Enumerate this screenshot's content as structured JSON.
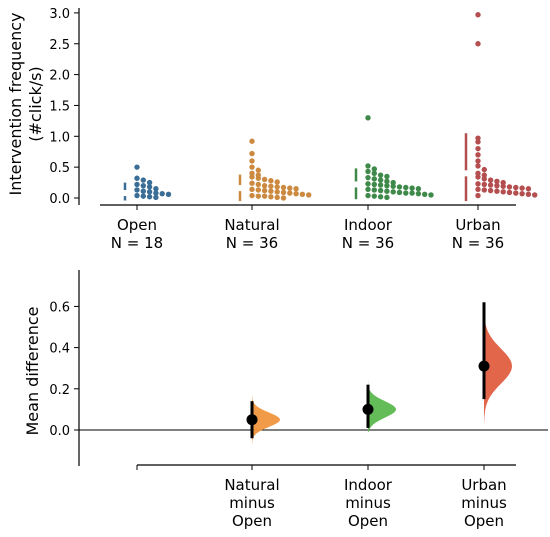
{
  "chart_data": [
    {
      "type": "scatter",
      "ylabel_lines": [
        "Intervention frequency",
        "(#click/s)"
      ],
      "ylim": [
        0,
        3
      ],
      "yticks": [
        "0.0",
        "0.5",
        "1.0",
        "1.5",
        "2.0",
        "2.5",
        "3.0"
      ],
      "ytick_values": [
        0,
        0.5,
        1.0,
        1.5,
        2.0,
        2.5,
        3.0
      ],
      "categories": [
        {
          "label": "Open",
          "n_label": "N = 18",
          "color": "#3a6e96",
          "errorbar": {
            "center": 0.08,
            "low": -0.04,
            "high": 0.25
          },
          "values": [
            0.5,
            0.32,
            0.29,
            0.25,
            0.22,
            0.2,
            0.18,
            0.15,
            0.13,
            0.11,
            0.1,
            0.08,
            0.07,
            0.06,
            0.04,
            0.03,
            0.02,
            0.01
          ]
        },
        {
          "label": "Natural",
          "n_label": "N = 36",
          "color": "#cc8a40",
          "errorbar": {
            "center": 0.16,
            "low": -0.05,
            "high": 0.38
          },
          "values": [
            0.92,
            0.72,
            0.6,
            0.5,
            0.45,
            0.4,
            0.37,
            0.34,
            0.32,
            0.3,
            0.28,
            0.26,
            0.24,
            0.22,
            0.2,
            0.19,
            0.18,
            0.17,
            0.16,
            0.15,
            0.14,
            0.13,
            0.12,
            0.11,
            0.1,
            0.09,
            0.08,
            0.07,
            0.06,
            0.05,
            0.04,
            0.03,
            0.03,
            0.02,
            0.01,
            0.0
          ]
        },
        {
          "label": "Indoor",
          "n_label": "N = 36",
          "color": "#3f8a4a",
          "errorbar": {
            "center": 0.22,
            "low": -0.02,
            "high": 0.48
          },
          "values": [
            1.3,
            0.52,
            0.47,
            0.43,
            0.4,
            0.37,
            0.35,
            0.33,
            0.31,
            0.29,
            0.27,
            0.25,
            0.23,
            0.22,
            0.21,
            0.2,
            0.19,
            0.18,
            0.17,
            0.16,
            0.15,
            0.14,
            0.13,
            0.12,
            0.11,
            0.1,
            0.09,
            0.08,
            0.08,
            0.07,
            0.06,
            0.05,
            0.04,
            0.03,
            0.02,
            0.01
          ]
        },
        {
          "label": "Urban",
          "n_label": "N = 36",
          "color": "#b54f4f",
          "errorbar": {
            "center": 0.4,
            "low": -0.05,
            "high": 1.05
          },
          "values": [
            2.97,
            2.5,
            0.97,
            0.91,
            0.8,
            0.7,
            0.6,
            0.52,
            0.46,
            0.4,
            0.37,
            0.34,
            0.31,
            0.29,
            0.27,
            0.25,
            0.23,
            0.22,
            0.21,
            0.2,
            0.19,
            0.18,
            0.17,
            0.16,
            0.15,
            0.14,
            0.13,
            0.12,
            0.11,
            0.1,
            0.09,
            0.08,
            0.07,
            0.06,
            0.05,
            0.04
          ]
        }
      ]
    },
    {
      "type": "area",
      "ylabel": "Mean difference",
      "ylim": [
        -0.17,
        0.78
      ],
      "yticks": [
        "0.0",
        "0.2",
        "0.4",
        "0.6"
      ],
      "ytick_values": [
        0,
        0.2,
        0.4,
        0.6
      ],
      "contrasts": [
        {
          "label_lines": [
            "Natural",
            "minus",
            "Open"
          ],
          "color": "#f0953e",
          "mean": 0.05,
          "ci": [
            -0.04,
            0.14
          ],
          "dist_sd": 0.035,
          "dist_range": [
            -0.08,
            0.19
          ]
        },
        {
          "label_lines": [
            "Indoor",
            "minus",
            "Open"
          ],
          "color": "#5cb84f",
          "mean": 0.1,
          "ci": [
            0.01,
            0.22
          ],
          "dist_sd": 0.04,
          "dist_range": [
            -0.01,
            0.26
          ]
        },
        {
          "label_lines": [
            "Urban",
            "minus",
            "Open"
          ],
          "color": "#e05e40",
          "mean": 0.31,
          "ci": [
            0.15,
            0.62
          ],
          "dist_sd": 0.085,
          "dist_range": [
            0.03,
            0.74
          ]
        }
      ]
    }
  ]
}
